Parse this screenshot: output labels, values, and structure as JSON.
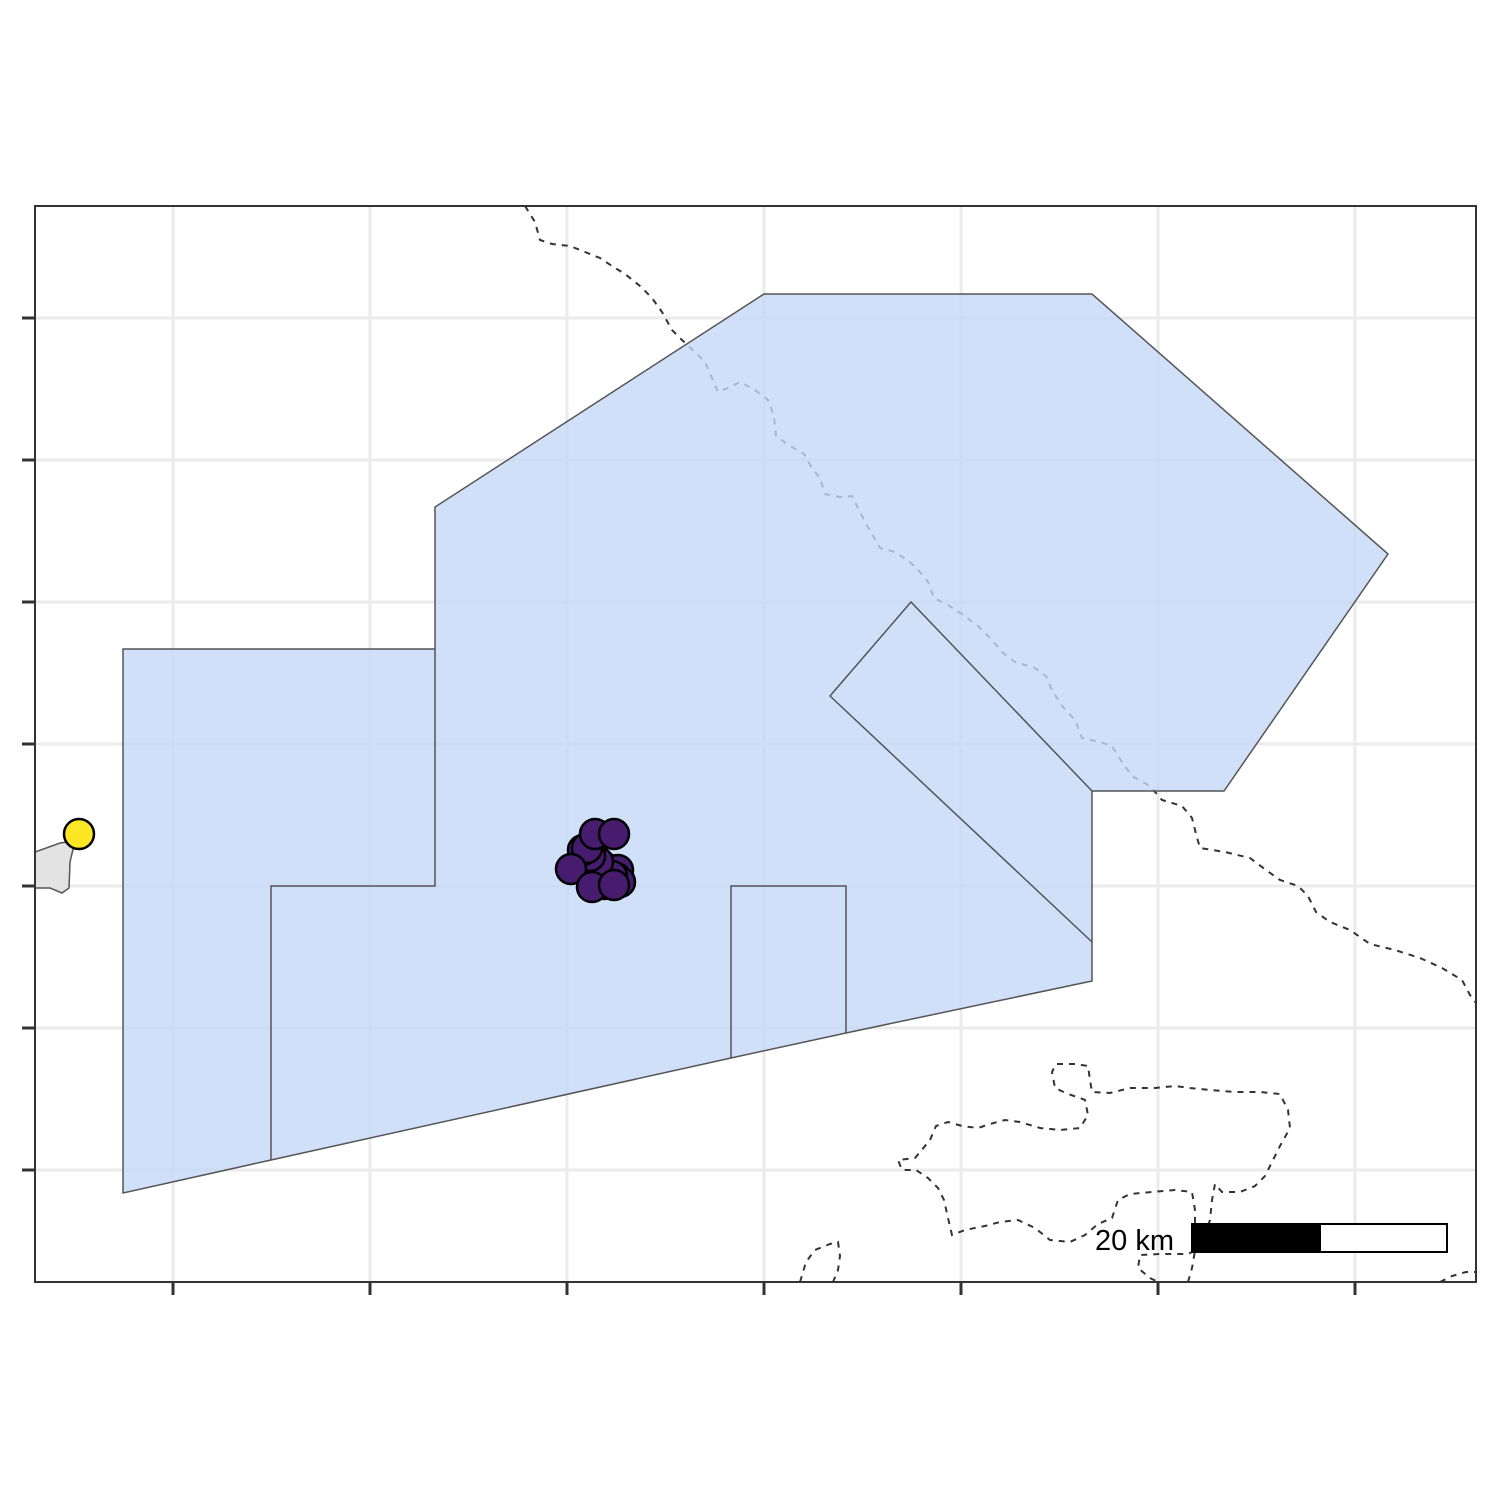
{
  "map": {
    "scale_bar": {
      "label": "20 km"
    },
    "colors": {
      "panel_background": "#ffffff",
      "panel_border": "#333333",
      "gridline": "#ebebeb",
      "zone_fill": "#c6d8f7",
      "zone_outline": "#555555",
      "land_fill": "#e3e3e3",
      "coastline_dash": "#333333",
      "cluster_point": "#471c6e",
      "single_point": "#fde725",
      "scale_dark": "#000000",
      "scale_light": "#ffffff"
    },
    "legend": "none",
    "grid": true,
    "tick_labels_shown": false
  }
}
